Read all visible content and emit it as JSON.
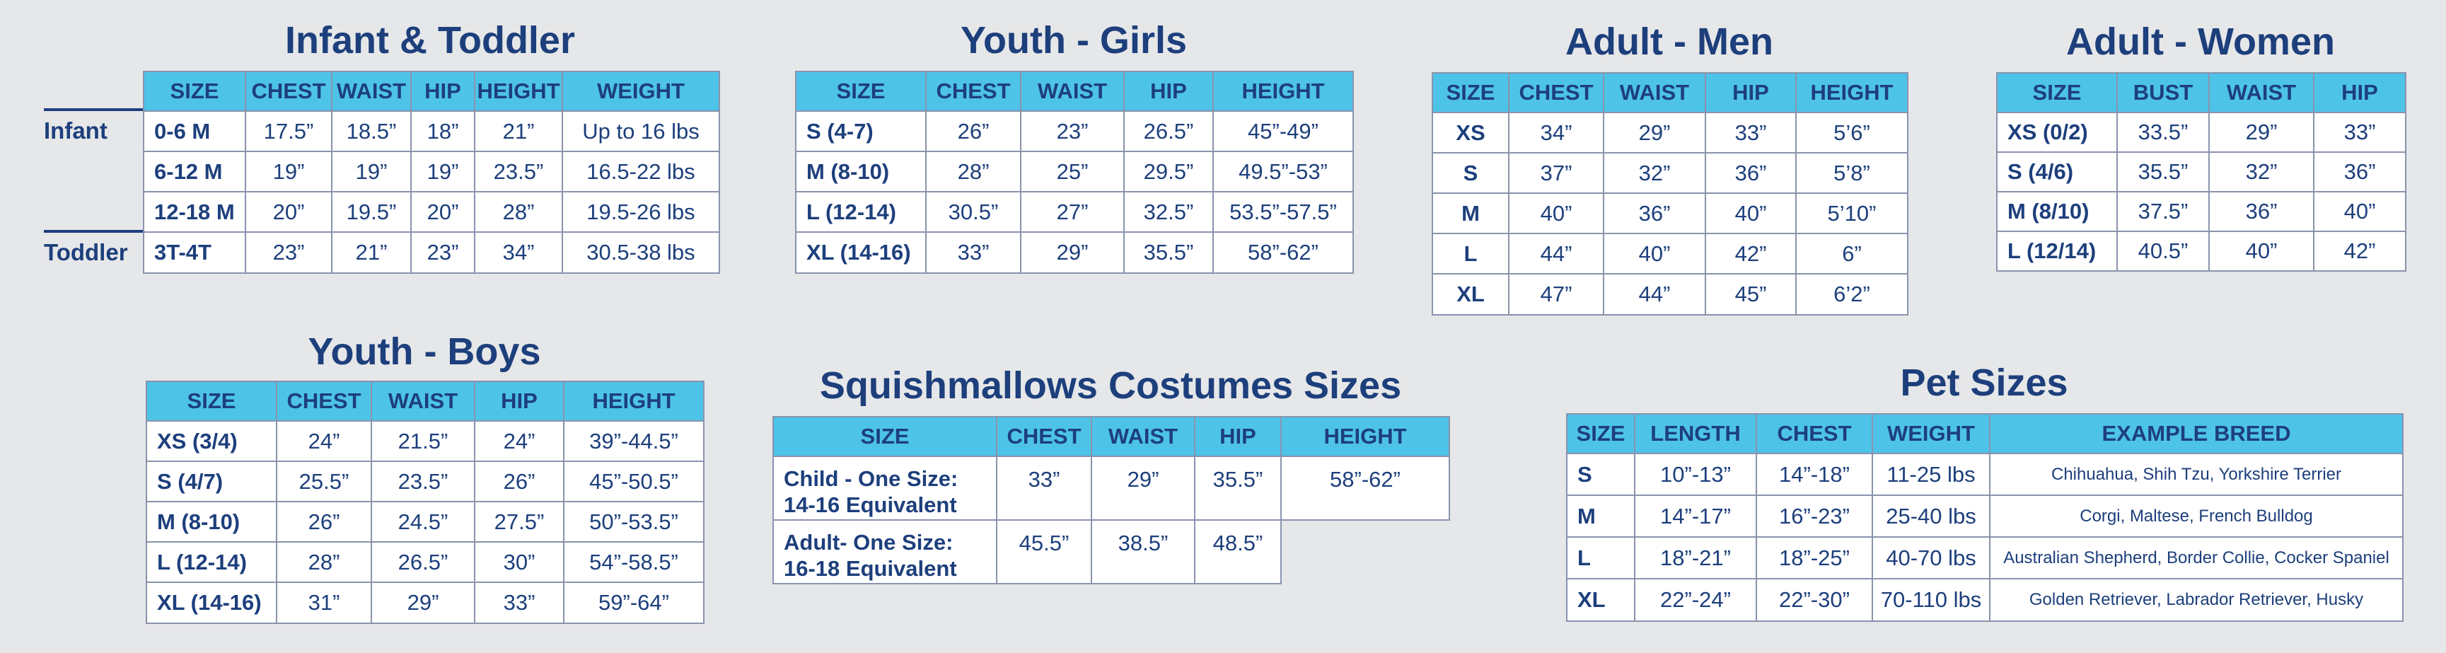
{
  "infant": {
    "title": "Infant & Toddler",
    "headers": [
      "SIZE",
      "CHEST",
      "WAIST",
      "HIP",
      "HEIGHT",
      "WEIGHT"
    ],
    "group_infant": "Infant",
    "group_toddler": "Toddler",
    "rows": [
      [
        "0-6 M",
        "17.5”",
        "18.5”",
        "18”",
        "21”",
        "Up to 16 lbs"
      ],
      [
        "6-12 M",
        "19”",
        "19”",
        "19”",
        "23.5”",
        "16.5-22 lbs"
      ],
      [
        "12-18 M",
        "20”",
        "19.5”",
        "20”",
        "28”",
        "19.5-26 lbs"
      ],
      [
        "3T-4T",
        "23”",
        "21”",
        "23”",
        "34”",
        "30.5-38 lbs"
      ]
    ]
  },
  "girls": {
    "title": "Youth - Girls",
    "headers": [
      "SIZE",
      "CHEST",
      "WAIST",
      "HIP",
      "HEIGHT"
    ],
    "rows": [
      [
        "S (4-7)",
        "26”",
        "23”",
        "26.5”",
        "45”-49”"
      ],
      [
        "M (8-10)",
        "28”",
        "25”",
        "29.5”",
        "49.5”-53”"
      ],
      [
        "L (12-14)",
        "30.5”",
        "27”",
        "32.5”",
        "53.5”-57.5”"
      ],
      [
        "XL (14-16)",
        "33”",
        "29”",
        "35.5”",
        "58”-62”"
      ]
    ]
  },
  "men": {
    "title": "Adult - Men",
    "headers": [
      "SIZE",
      "CHEST",
      "WAIST",
      "HIP",
      "HEIGHT"
    ],
    "rows": [
      [
        "XS",
        "34”",
        "29”",
        "33”",
        "5’6”"
      ],
      [
        "S",
        "37”",
        "32”",
        "36”",
        "5’8”"
      ],
      [
        "M",
        "40”",
        "36”",
        "40”",
        "5’10”"
      ],
      [
        "L",
        "44”",
        "40”",
        "42”",
        "6”"
      ],
      [
        "XL",
        "47”",
        "44”",
        "45”",
        "6’2”"
      ]
    ]
  },
  "women": {
    "title": "Adult - Women",
    "headers": [
      "SIZE",
      "BUST",
      "WAIST",
      "HIP"
    ],
    "rows": [
      [
        "XS (0/2)",
        "33.5”",
        "29”",
        "33”"
      ],
      [
        "S (4/6)",
        "35.5”",
        "32”",
        "36”"
      ],
      [
        "M (8/10)",
        "37.5”",
        "36”",
        "40”"
      ],
      [
        "L (12/14)",
        "40.5”",
        "40”",
        "42”"
      ]
    ]
  },
  "boys": {
    "title": "Youth - Boys",
    "headers": [
      "SIZE",
      "CHEST",
      "WAIST",
      "HIP",
      "HEIGHT"
    ],
    "rows": [
      [
        "XS (3/4)",
        "24”",
        "21.5”",
        "24”",
        "39”-44.5”"
      ],
      [
        "S (4/7)",
        "25.5”",
        "23.5”",
        "26”",
        "45”-50.5”"
      ],
      [
        "M (8-10)",
        "26”",
        "24.5”",
        "27.5”",
        "50”-53.5”"
      ],
      [
        "L (12-14)",
        "28”",
        "26.5”",
        "30”",
        "54”-58.5”"
      ],
      [
        "XL (14-16)",
        "31”",
        "29”",
        "33”",
        "59”-64”"
      ]
    ]
  },
  "costumes": {
    "title": "Squishmallows Costumes Sizes",
    "headers": [
      "SIZE",
      "CHEST",
      "WAIST",
      "HIP",
      "HEIGHT"
    ],
    "rows": [
      [
        "Child - One Size:",
        "14-16 Equivalent",
        "33”",
        "29”",
        "35.5”",
        "58”-62”"
      ],
      [
        "Adult- One Size:",
        "16-18 Equivalent",
        "45.5”",
        "38.5”",
        "48.5”",
        ""
      ]
    ]
  },
  "pets": {
    "title": "Pet Sizes",
    "headers": [
      "SIZE",
      "LENGTH",
      "CHEST",
      "WEIGHT",
      "EXAMPLE BREED"
    ],
    "rows": [
      [
        "S",
        "10”-13”",
        "14”-18”",
        "11-25 lbs",
        "Chihuahua, Shih Tzu, Yorkshire Terrier"
      ],
      [
        "M",
        "14”-17”",
        "16”-23”",
        "25-40 lbs",
        "Corgi, Maltese, French Bulldog"
      ],
      [
        "L",
        "18”-21”",
        "18”-25”",
        "40-70 lbs",
        "Australian Shepherd, Border Collie, Cocker Spaniel"
      ],
      [
        "XL",
        "22”-24”",
        "22”-30”",
        "70-110 lbs",
        "Golden Retriever, Labrador Retriever, Husky"
      ]
    ]
  }
}
